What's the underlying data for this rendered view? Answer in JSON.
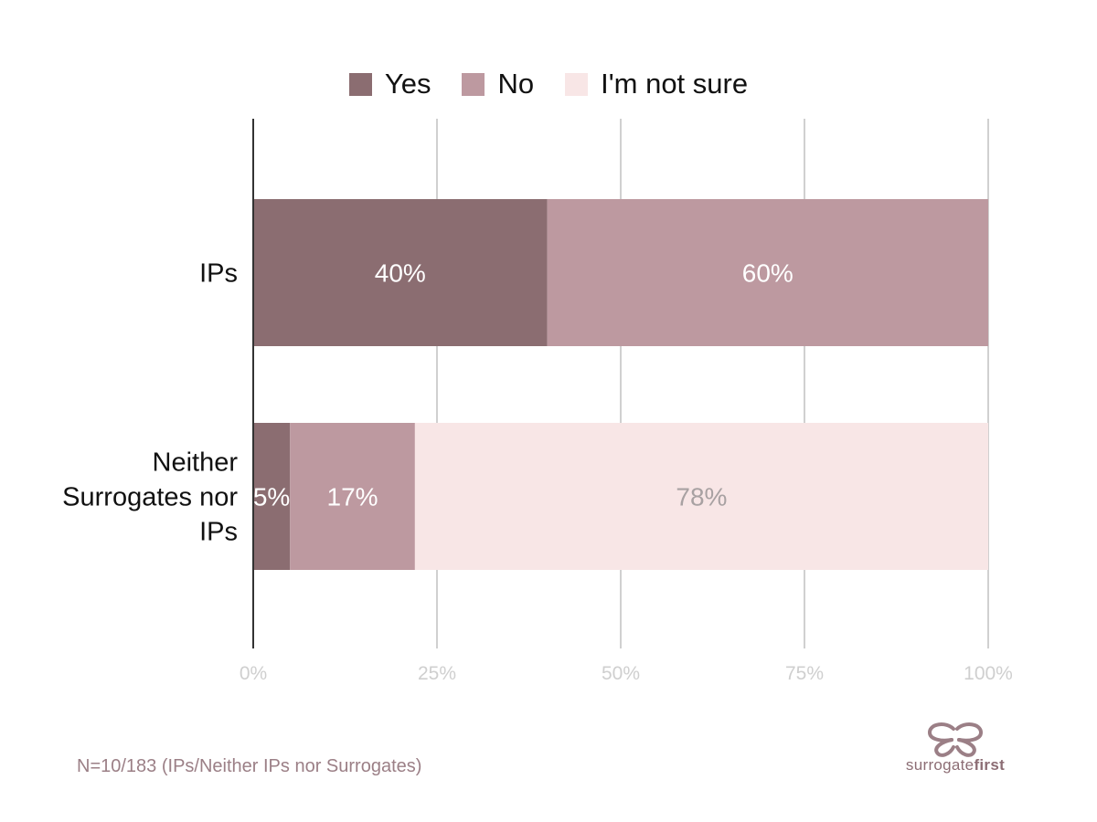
{
  "legend": {
    "items": [
      {
        "label": "Yes",
        "color": "#8b6d71"
      },
      {
        "label": "No",
        "color": "#bd99a0"
      },
      {
        "label": "I'm not sure",
        "color": "#f8e6e6"
      }
    ]
  },
  "footnote": "N=10/183 (IPs/Neither IPs nor Surrogates)",
  "brand": {
    "prefix": "surrogate",
    "suffix": "first"
  },
  "chart_data": {
    "type": "bar",
    "orientation": "horizontal",
    "stacked": true,
    "categories": [
      "IPs",
      "Neither Surrogates nor IPs"
    ],
    "category_lines": [
      [
        "IPs"
      ],
      [
        "Neither",
        "Surrogates nor",
        "IPs"
      ]
    ],
    "series": [
      {
        "name": "Yes",
        "values": [
          40,
          5
        ],
        "labels": [
          "40%",
          "5%"
        ],
        "color": "#8b6d71",
        "label_color": "#ffffff"
      },
      {
        "name": "No",
        "values": [
          60,
          17
        ],
        "labels": [
          "60%",
          "17%"
        ],
        "color": "#bd99a0",
        "label_color": "#ffffff"
      },
      {
        "name": "I'm not sure",
        "values": [
          0,
          78
        ],
        "labels": [
          "",
          "78%"
        ],
        "color": "#f8e6e6",
        "label_color": "#a8a1a2"
      }
    ],
    "xlim": [
      0,
      100
    ],
    "xticks": [
      0,
      25,
      50,
      75,
      100
    ],
    "xtick_labels": [
      "0%",
      "25%",
      "50%",
      "75%",
      "100%"
    ],
    "grid": true,
    "legend_position": "top"
  }
}
